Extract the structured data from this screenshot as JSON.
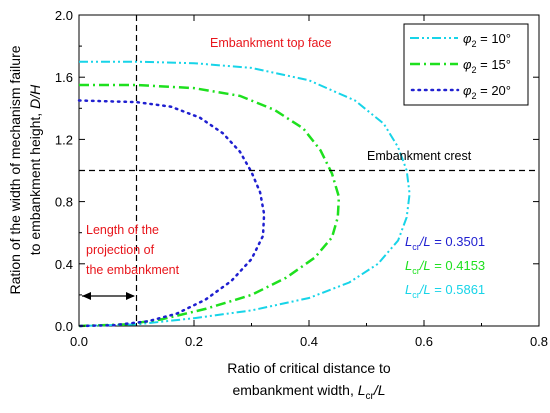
{
  "chart_data": {
    "type": "line",
    "xlabel_line1": "Ratio of critical distance to",
    "xlabel_line2_prefix": "embankment width, ",
    "xlabel_line2_var": "L",
    "xlabel_line2_sub": "cr",
    "xlabel_line2_suffix": "/L",
    "ylabel_line1": "Ration of the width of  mechanism failure",
    "ylabel_line2_prefix": "to embankment height, ",
    "ylabel_line2_var": "D/H",
    "xlim": [
      0.0,
      0.8
    ],
    "ylim": [
      0.0,
      2.0
    ],
    "x_ticks": [
      "0.0",
      "0.2",
      "0.4",
      "0.6",
      "0.8"
    ],
    "y_ticks": [
      "0.0",
      "0.4",
      "0.8",
      "1.2",
      "1.6",
      "2.0"
    ],
    "grid": false,
    "legend_position": "top-right",
    "series": [
      {
        "name": "φ2 = 10°",
        "legend_symbol": "φ",
        "legend_sub": "2",
        "legend_suffix": " = 10°",
        "color": "#17d4e8",
        "style": "dash-dot-dot",
        "points": [
          [
            0.0,
            1.7
          ],
          [
            0.1,
            1.7
          ],
          [
            0.2,
            1.69
          ],
          [
            0.3,
            1.66
          ],
          [
            0.4,
            1.58
          ],
          [
            0.48,
            1.45
          ],
          [
            0.53,
            1.3
          ],
          [
            0.555,
            1.15
          ],
          [
            0.57,
            1.0
          ],
          [
            0.575,
            0.85
          ],
          [
            0.57,
            0.7
          ],
          [
            0.555,
            0.55
          ],
          [
            0.52,
            0.4
          ],
          [
            0.47,
            0.28
          ],
          [
            0.4,
            0.18
          ],
          [
            0.3,
            0.1
          ],
          [
            0.2,
            0.05
          ],
          [
            0.1,
            0.01
          ],
          [
            0.0,
            0.0
          ]
        ]
      },
      {
        "name": "φ2 = 15°",
        "legend_symbol": "φ",
        "legend_sub": "2",
        "legend_suffix": " = 15°",
        "color": "#1ee01e",
        "style": "dash-dot",
        "points": [
          [
            0.0,
            1.55
          ],
          [
            0.1,
            1.55
          ],
          [
            0.2,
            1.53
          ],
          [
            0.28,
            1.48
          ],
          [
            0.34,
            1.39
          ],
          [
            0.39,
            1.27
          ],
          [
            0.42,
            1.13
          ],
          [
            0.44,
            0.98
          ],
          [
            0.452,
            0.83
          ],
          [
            0.45,
            0.7
          ],
          [
            0.44,
            0.57
          ],
          [
            0.41,
            0.44
          ],
          [
            0.36,
            0.31
          ],
          [
            0.3,
            0.2
          ],
          [
            0.22,
            0.11
          ],
          [
            0.14,
            0.04
          ],
          [
            0.08,
            0.01
          ],
          [
            0.0,
            0.0
          ]
        ]
      },
      {
        "name": "φ2 = 20°",
        "legend_symbol": "φ",
        "legend_sub": "2",
        "legend_suffix": " = 20°",
        "color": "#1f1fd0",
        "style": "dotted",
        "points": [
          [
            0.0,
            1.45
          ],
          [
            0.1,
            1.44
          ],
          [
            0.16,
            1.41
          ],
          [
            0.21,
            1.34
          ],
          [
            0.25,
            1.24
          ],
          [
            0.28,
            1.12
          ],
          [
            0.3,
            0.99
          ],
          [
            0.315,
            0.86
          ],
          [
            0.322,
            0.72
          ],
          [
            0.32,
            0.58
          ],
          [
            0.3,
            0.43
          ],
          [
            0.265,
            0.29
          ],
          [
            0.22,
            0.17
          ],
          [
            0.17,
            0.08
          ],
          [
            0.12,
            0.03
          ],
          [
            0.06,
            0.005
          ],
          [
            0.0,
            0.0
          ]
        ]
      }
    ],
    "reference_lines": {
      "vertical_x": 0.1,
      "horizontal_y": 1.0
    },
    "annotations": {
      "embankment_top_face": "Embankment top face",
      "embankment_crest": "Embankment crest",
      "projection_line1": "Length of the",
      "projection_line2": "projection of",
      "projection_line3": "the embankment"
    },
    "lcr_labels": [
      {
        "var": "L",
        "sub": "cr",
        "mid": "/L",
        "value": " = 0.3501",
        "color": "#1f1fd0"
      },
      {
        "var": "L",
        "sub": "cr",
        "mid": "/L",
        "value": " = 0.4153",
        "color": "#1ee01e"
      },
      {
        "var": "L",
        "sub": "cr",
        "mid": "/L",
        "value": " = 0.5861",
        "color": "#17d4e8"
      }
    ]
  }
}
